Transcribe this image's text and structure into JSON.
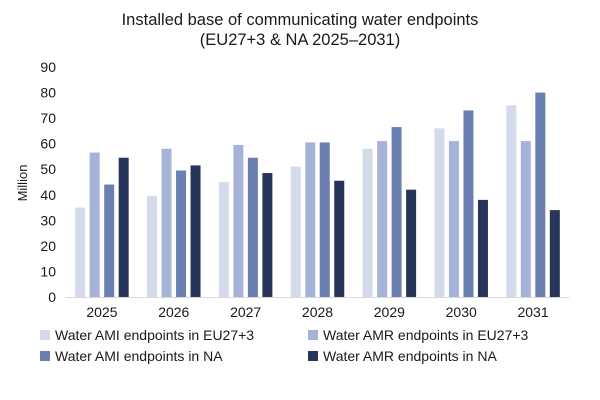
{
  "chart_data": {
    "type": "bar",
    "title_lines": [
      "Installed base of communicating water endpoints",
      "(EU27+3 & NA 2025–2031)"
    ],
    "xlabel": "",
    "ylabel": "Million",
    "ylim": [
      0,
      90
    ],
    "yticks": [
      0,
      10,
      20,
      30,
      40,
      50,
      60,
      70,
      80,
      90
    ],
    "grid": false,
    "legend_position": "bottom",
    "categories": [
      "2025",
      "2026",
      "2027",
      "2028",
      "2029",
      "2030",
      "2031"
    ],
    "series": [
      {
        "name": "Water AMI endpoints in EU27+3",
        "color": "#d3dae9",
        "values": [
          35,
          39.5,
          45,
          51,
          58,
          66,
          75
        ]
      },
      {
        "name": "Water AMR endpoints in EU27+3",
        "color": "#a6b3d9",
        "values": [
          56.5,
          58,
          59.5,
          60.5,
          61,
          61,
          61
        ]
      },
      {
        "name": "Water AMI endpoints in NA",
        "color": "#6b7fb2",
        "values": [
          44,
          49.5,
          54.5,
          60.5,
          66.5,
          73,
          80
        ]
      },
      {
        "name": "Water AMR endpoints in NA",
        "color": "#263559",
        "values": [
          54.5,
          51.5,
          48.5,
          45.5,
          42,
          38,
          34
        ]
      }
    ]
  }
}
